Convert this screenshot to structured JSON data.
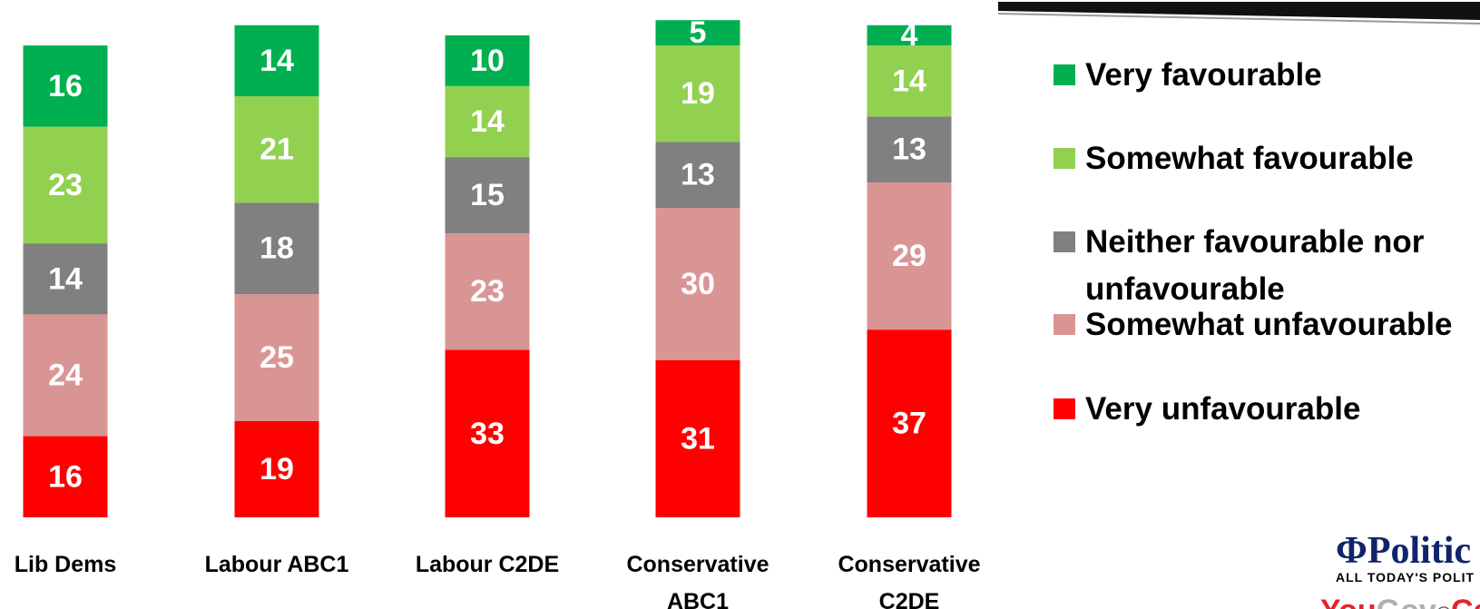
{
  "chart_data": {
    "type": "bar",
    "stacked": true,
    "categories": [
      [
        "Lib Dems"
      ],
      [
        "Labour ABC1"
      ],
      [
        "Labour C2DE"
      ],
      [
        "Conservative",
        "ABC1"
      ],
      [
        "Conservative",
        "C2DE"
      ]
    ],
    "series": [
      {
        "name": "Very favourable",
        "color": "#00b050",
        "values": [
          16,
          14,
          10,
          5,
          4
        ]
      },
      {
        "name": "Somewhat favourable",
        "color": "#92d050",
        "values": [
          23,
          21,
          14,
          19,
          14
        ]
      },
      {
        "name": "Neither favourable nor unfavourable",
        "color": "#808080",
        "values": [
          14,
          18,
          15,
          13,
          13
        ]
      },
      {
        "name": "Somewhat unfavourable",
        "color": "#d99594",
        "values": [
          24,
          25,
          23,
          30,
          29
        ]
      },
      {
        "name": "Very unfavourable",
        "color": "#ff0000",
        "values": [
          16,
          19,
          33,
          31,
          37
        ]
      }
    ],
    "stack_order": "Very unfavourable at bottom, Very favourable at top",
    "data_labels": true,
    "legend_position": "right",
    "grid": false,
    "ylim": [
      0,
      100
    ]
  },
  "legend": {
    "lines": [
      [
        "Very favourable"
      ],
      [
        "Somewhat favourable"
      ],
      [
        "Neither favourable nor",
        "unfavourable"
      ],
      [
        "Somewhat unfavourable"
      ],
      [
        "Very unfavourable"
      ]
    ]
  },
  "logos": {
    "politics_symbol": "Φ",
    "politics_text": "Politic",
    "politics_tagline": "ALL TODAY'S POLIT",
    "yougov_you": "You",
    "yougov_gov": "Gov",
    "yougov_at": "®",
    "yougov_ca": "Ca"
  },
  "colors": {
    "very_favourable": "#00b050",
    "somewhat_favourable": "#92d050",
    "neither": "#808080",
    "somewhat_unfavourable": "#d99594",
    "very_unfavourable": "#ff0000"
  }
}
